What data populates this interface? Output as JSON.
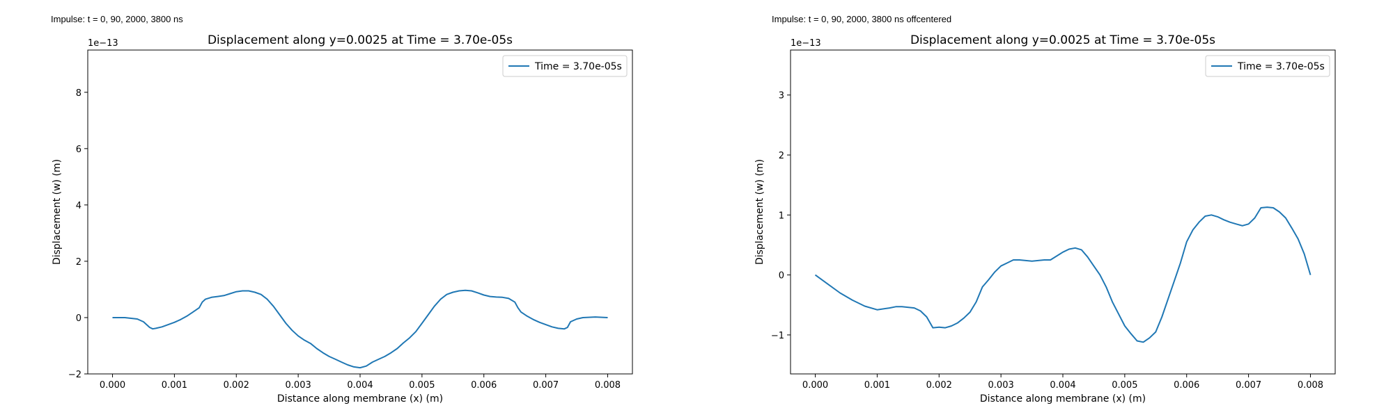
{
  "panels": [
    {
      "caption": "Impulse: t = 0, 90, 2000, 3800 ns"
    },
    {
      "caption": "Impulse: t = 0, 90, 2000, 3800 ns offcentered"
    }
  ],
  "chart_data": [
    {
      "type": "line",
      "title": "Displacement along y=0.0025 at Time = 3.70e-05s",
      "xlabel": "Distance along membrane (x) (m)",
      "ylabel": "Displacement (w) (m)",
      "offset_text": "1e−13",
      "xlim": [
        -0.0004,
        0.0084
      ],
      "ylim": [
        -2e-13,
        9.5e-13
      ],
      "xticks": [
        0,
        0.001,
        0.002,
        0.003,
        0.004,
        0.005,
        0.006,
        0.007,
        0.008
      ],
      "xtick_labels": [
        "0.000",
        "0.001",
        "0.002",
        "0.003",
        "0.004",
        "0.005",
        "0.006",
        "0.007",
        "0.008"
      ],
      "yticks": [
        -2e-13,
        0,
        2e-13,
        4e-13,
        6e-13,
        8e-13
      ],
      "ytick_labels": [
        "−2",
        "0",
        "2",
        "4",
        "6",
        "8"
      ],
      "grid": false,
      "legend": "upper right",
      "color": "#1f77b4",
      "series": [
        {
          "name": "Time = 3.70e-05s",
          "x": [
            0,
            0.0002,
            0.0004,
            0.0005,
            0.0006,
            0.00065,
            0.0007,
            0.0008,
            0.0009,
            0.001,
            0.0011,
            0.0012,
            0.0013,
            0.0014,
            0.00145,
            0.0015,
            0.0016,
            0.0017,
            0.0018,
            0.0019,
            0.002,
            0.0021,
            0.0022,
            0.0023,
            0.0024,
            0.0025,
            0.0026,
            0.0027,
            0.0028,
            0.0029,
            0.003,
            0.0031,
            0.0032,
            0.0033,
            0.0034,
            0.0035,
            0.0036,
            0.0037,
            0.0038,
            0.0039,
            0.004,
            0.0041,
            0.0042,
            0.0043,
            0.0044,
            0.0045,
            0.0046,
            0.0047,
            0.0048,
            0.0049,
            0.005,
            0.0051,
            0.0052,
            0.0053,
            0.0054,
            0.0055,
            0.0056,
            0.0057,
            0.0058,
            0.0059,
            0.006,
            0.0061,
            0.0062,
            0.0063,
            0.0064,
            0.0065,
            0.00655,
            0.0066,
            0.0067,
            0.0068,
            0.0069,
            0.007,
            0.0071,
            0.0072,
            0.0073,
            0.00735,
            0.0074,
            0.0075,
            0.0076,
            0.0078,
            0.008
          ],
          "y": [
            0,
            0,
            -5e-15,
            -1.5e-14,
            -3.5e-14,
            -4e-14,
            -3.8e-14,
            -3.3e-14,
            -2.5e-14,
            -1.7e-14,
            -7e-15,
            5e-15,
            2e-14,
            3.5e-14,
            5.5e-14,
            6.5e-14,
            7.2e-14,
            7.5e-14,
            7.8e-14,
            8.5e-14,
            9.2e-14,
            9.5e-14,
            9.5e-14,
            9e-14,
            8.2e-14,
            6.5e-14,
            4e-14,
            1e-14,
            -2e-14,
            -4.5e-14,
            -6.5e-14,
            -8e-14,
            -9.2e-14,
            -1.1e-13,
            -1.25e-13,
            -1.38e-13,
            -1.48e-13,
            -1.58e-13,
            -1.68e-13,
            -1.75e-13,
            -1.78e-13,
            -1.72e-13,
            -1.58e-13,
            -1.48e-13,
            -1.38e-13,
            -1.25e-13,
            -1.1e-13,
            -9e-14,
            -7.2e-14,
            -5e-14,
            -2e-14,
            1e-14,
            4e-14,
            6.5e-14,
            8.2e-14,
            9e-14,
            9.5e-14,
            9.7e-14,
            9.5e-14,
            8.8e-14,
            8e-14,
            7.5e-14,
            7.3e-14,
            7.2e-14,
            6.8e-14,
            5.5e-14,
            3.5e-14,
            2e-14,
            5e-15,
            -7e-15,
            -1.7e-14,
            -2.5e-14,
            -3.3e-14,
            -3.8e-14,
            -4e-14,
            -3.5e-14,
            -1.5e-14,
            -5e-15,
            0,
            2e-15,
            0
          ]
        }
      ]
    },
    {
      "type": "line",
      "title": "Displacement along y=0.0025 at Time = 3.70e-05s",
      "xlabel": "Distance along membrane (x) (m)",
      "ylabel": "Displacement (w) (m)",
      "offset_text": "1e−13",
      "xlim": [
        -0.0004,
        0.0084
      ],
      "ylim": [
        -1.65e-13,
        3.75e-13
      ],
      "xticks": [
        0,
        0.001,
        0.002,
        0.003,
        0.004,
        0.005,
        0.006,
        0.007,
        0.008
      ],
      "xtick_labels": [
        "0.000",
        "0.001",
        "0.002",
        "0.003",
        "0.004",
        "0.005",
        "0.006",
        "0.007",
        "0.008"
      ],
      "yticks": [
        -1e-13,
        0,
        1e-13,
        2e-13,
        3e-13
      ],
      "ytick_labels": [
        "−1",
        "0",
        "1",
        "2",
        "3"
      ],
      "grid": false,
      "legend": "upper right",
      "color": "#1f77b4",
      "series": [
        {
          "name": "Time = 3.70e-05s",
          "x": [
            0,
            0.0002,
            0.0004,
            0.0006,
            0.0008,
            0.001,
            0.0012,
            0.0013,
            0.0014,
            0.0016,
            0.0017,
            0.0018,
            0.0019,
            0.002,
            0.0021,
            0.0022,
            0.0023,
            0.0024,
            0.0025,
            0.0026,
            0.0027,
            0.0028,
            0.0029,
            0.003,
            0.0031,
            0.0032,
            0.0033,
            0.0035,
            0.0037,
            0.0038,
            0.004,
            0.0041,
            0.0042,
            0.0043,
            0.0044,
            0.0045,
            0.0046,
            0.0047,
            0.0048,
            0.0049,
            0.005,
            0.0051,
            0.0052,
            0.0053,
            0.0054,
            0.0055,
            0.0056,
            0.0057,
            0.0058,
            0.0059,
            0.006,
            0.0061,
            0.0062,
            0.0063,
            0.0064,
            0.0065,
            0.0066,
            0.0067,
            0.0068,
            0.0069,
            0.007,
            0.0071,
            0.0072,
            0.0073,
            0.0074,
            0.0075,
            0.0076,
            0.0077,
            0.0078,
            0.0079,
            0.008
          ],
          "y": [
            0,
            -1.5e-14,
            -3e-14,
            -4.2e-14,
            -5.2e-14,
            -5.8e-14,
            -5.5e-14,
            -5.3e-14,
            -5.3e-14,
            -5.5e-14,
            -6e-14,
            -7e-14,
            -8.8e-14,
            -8.7e-14,
            -8.8e-14,
            -8.5e-14,
            -8e-14,
            -7.2e-14,
            -6.2e-14,
            -4.5e-14,
            -2e-14,
            -8e-15,
            5e-15,
            1.5e-14,
            2e-14,
            2.5e-14,
            2.5e-14,
            2.3e-14,
            2.5e-14,
            2.5e-14,
            3.8e-14,
            4.3e-14,
            4.5e-14,
            4.2e-14,
            3e-14,
            1.5e-14,
            0,
            -2e-14,
            -4.5e-14,
            -6.5e-14,
            -8.5e-14,
            -9.8e-14,
            -1.1e-13,
            -1.12e-13,
            -1.05e-13,
            -9.5e-14,
            -7e-14,
            -4e-14,
            -1e-14,
            2e-14,
            5.5e-14,
            7.5e-14,
            8.8e-14,
            9.8e-14,
            1e-13,
            9.7e-14,
            9.2e-14,
            8.8e-14,
            8.5e-14,
            8.2e-14,
            8.5e-14,
            9.5e-14,
            1.12e-13,
            1.13e-13,
            1.12e-13,
            1.05e-13,
            9.5e-14,
            7.8e-14,
            6e-14,
            3.5e-14,
            0
          ]
        }
      ]
    }
  ]
}
